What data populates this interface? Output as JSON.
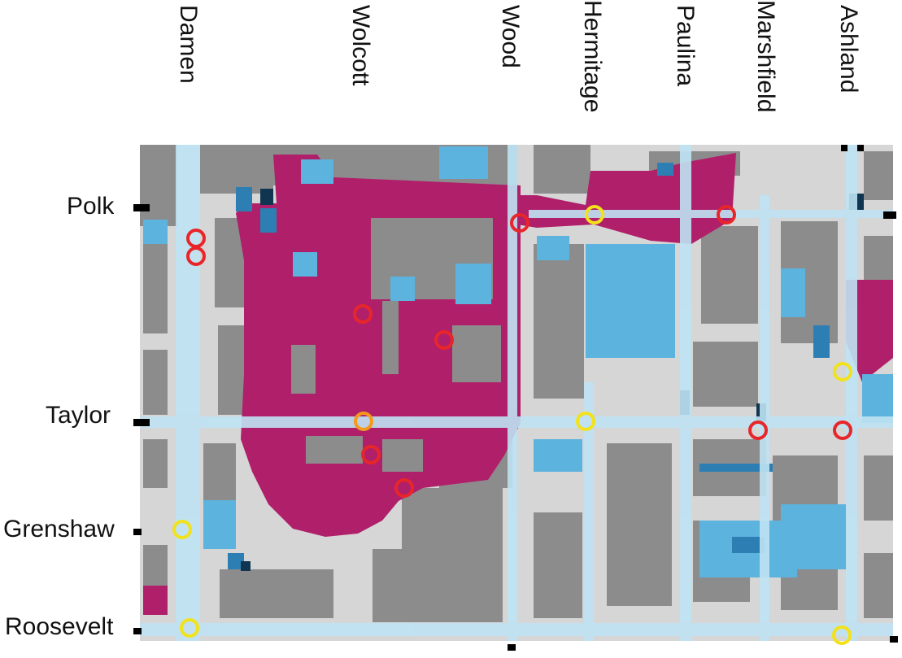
{
  "colors": {
    "building": "#8c8c8c",
    "open_space": "#d6d6d6",
    "flood": "#b0206a",
    "water_light": "#9fd6ee",
    "water_mid": "#5bb3de",
    "water_dark": "#2d7fb3",
    "water_deep": "#0f3550",
    "street": "#bfe3f3",
    "marker_red": "#e8262a",
    "marker_yellow": "#f2e21c",
    "marker_orange": "#f39a1d",
    "tick": "#000000"
  },
  "streets": {
    "north_south": [
      {
        "id": "damen",
        "label": "Damen"
      },
      {
        "id": "wolcott",
        "label": "Wolcott"
      },
      {
        "id": "wood",
        "label": "Wood"
      },
      {
        "id": "hermitage",
        "label": "Hermitage"
      },
      {
        "id": "paulina",
        "label": "Paulina"
      },
      {
        "id": "marshfield",
        "label": "Marshfield"
      },
      {
        "id": "ashland",
        "label": "Ashland"
      }
    ],
    "east_west": [
      {
        "id": "polk",
        "label": "Polk"
      },
      {
        "id": "taylor",
        "label": "Taylor"
      },
      {
        "id": "grenshaw",
        "label": "Grenshaw"
      },
      {
        "id": "roosevelt",
        "label": "Roosevelt"
      }
    ]
  },
  "markers": [
    {
      "id": "m1",
      "color": "red"
    },
    {
      "id": "m2",
      "color": "red"
    },
    {
      "id": "m3",
      "color": "red"
    },
    {
      "id": "m4",
      "color": "yellow"
    },
    {
      "id": "m5",
      "color": "red"
    },
    {
      "id": "m6",
      "color": "red"
    },
    {
      "id": "m7",
      "color": "red"
    },
    {
      "id": "m8",
      "color": "yellow"
    },
    {
      "id": "m9",
      "color": "orange"
    },
    {
      "id": "m10",
      "color": "yellow"
    },
    {
      "id": "m11",
      "color": "red"
    },
    {
      "id": "m12",
      "color": "red"
    },
    {
      "id": "m13",
      "color": "red"
    },
    {
      "id": "m14",
      "color": "red"
    },
    {
      "id": "m15",
      "color": "yellow"
    },
    {
      "id": "m16",
      "color": "yellow"
    },
    {
      "id": "m17",
      "color": "yellow"
    }
  ]
}
